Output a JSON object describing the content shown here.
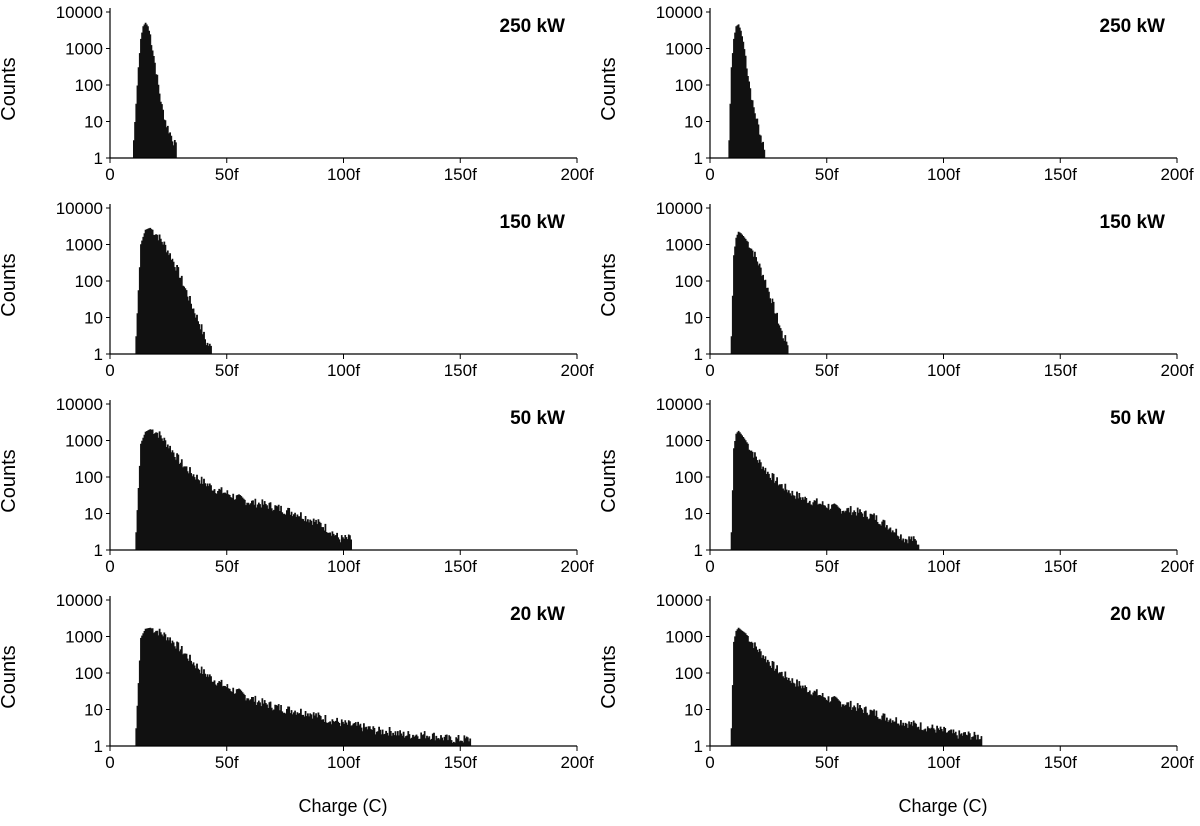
{
  "chart_data": [
    {
      "type": "histogram",
      "column": "left",
      "label": "250 kW",
      "ylabel": "Counts",
      "xlabel": "",
      "yscale": "log",
      "ylim": [
        1,
        10000
      ],
      "xlim": [
        0,
        200
      ],
      "x_unit": "fC",
      "xticks": [
        "0",
        "50f",
        "100f",
        "150f",
        "200f"
      ],
      "yticks": [
        "1",
        "10",
        "100",
        "1000",
        "10000"
      ],
      "x": [
        10,
        12,
        13,
        14,
        15,
        16,
        17,
        18,
        19,
        20,
        21,
        22,
        24,
        26,
        28
      ],
      "counts": [
        3,
        300,
        1800,
        4000,
        5000,
        4000,
        2300,
        1000,
        400,
        150,
        60,
        25,
        8,
        4,
        2
      ]
    },
    {
      "type": "histogram",
      "column": "right",
      "label": "250 kW",
      "ylabel": "Counts",
      "xlabel": "",
      "yscale": "log",
      "ylim": [
        1,
        10000
      ],
      "xlim": [
        0,
        200
      ],
      "x_unit": "fC",
      "xticks": [
        "0",
        "50f",
        "100f",
        "150f",
        "200f"
      ],
      "yticks": [
        "1",
        "10",
        "100",
        "1000",
        "10000"
      ],
      "x": [
        8,
        9,
        10,
        11,
        12,
        13,
        14,
        15,
        16,
        17,
        18,
        20,
        22,
        23
      ],
      "counts": [
        3,
        300,
        1800,
        4000,
        4500,
        3000,
        1500,
        600,
        200,
        80,
        30,
        10,
        3,
        2
      ]
    },
    {
      "type": "histogram",
      "column": "left",
      "label": "150 kW",
      "ylabel": "Counts",
      "xlabel": "",
      "yscale": "log",
      "ylim": [
        1,
        10000
      ],
      "xlim": [
        0,
        200
      ],
      "x_unit": "fC",
      "xticks": [
        "0",
        "50f",
        "100f",
        "150f",
        "200f"
      ],
      "yticks": [
        "1",
        "10",
        "100",
        "1000",
        "10000"
      ],
      "x": [
        11,
        13,
        15,
        17,
        20,
        23,
        26,
        29,
        32,
        35,
        37,
        39,
        41,
        43
      ],
      "counts": [
        3,
        1000,
        2500,
        2800,
        1800,
        1000,
        450,
        180,
        60,
        20,
        10,
        5,
        2,
        1.5
      ]
    },
    {
      "type": "histogram",
      "column": "right",
      "label": "150 kW",
      "ylabel": "Counts",
      "xlabel": "",
      "yscale": "log",
      "ylim": [
        1,
        10000
      ],
      "xlim": [
        0,
        200
      ],
      "x_unit": "fC",
      "xticks": [
        "0",
        "50f",
        "100f",
        "150f",
        "200f"
      ],
      "yticks": [
        "1",
        "10",
        "100",
        "1000",
        "10000"
      ],
      "x": [
        9,
        10,
        11,
        12,
        13,
        15,
        17,
        19,
        21,
        23,
        25,
        27,
        29,
        31,
        33
      ],
      "counts": [
        3,
        500,
        1500,
        2200,
        2000,
        1400,
        900,
        500,
        250,
        120,
        50,
        20,
        8,
        3,
        2
      ]
    },
    {
      "type": "histogram",
      "column": "left",
      "label": "50 kW",
      "ylabel": "Counts",
      "xlabel": "",
      "yscale": "log",
      "ylim": [
        1,
        10000
      ],
      "xlim": [
        0,
        200
      ],
      "x_unit": "fC",
      "xticks": [
        "0",
        "50f",
        "100f",
        "150f",
        "200f"
      ],
      "yticks": [
        "1",
        "10",
        "100",
        "1000",
        "10000"
      ],
      "x": [
        11,
        13,
        15,
        17,
        19,
        21,
        25,
        30,
        35,
        40,
        45,
        50,
        55,
        60,
        65,
        70,
        75,
        80,
        85,
        90,
        95,
        98,
        101,
        103
      ],
      "counts": [
        3,
        800,
        1700,
        2000,
        1800,
        1400,
        700,
        250,
        120,
        70,
        45,
        35,
        25,
        20,
        18,
        15,
        12,
        10,
        7,
        5,
        3,
        2,
        2,
        2
      ]
    },
    {
      "type": "histogram",
      "column": "right",
      "label": "50 kW",
      "ylabel": "Counts",
      "xlabel": "",
      "yscale": "log",
      "ylim": [
        1,
        10000
      ],
      "xlim": [
        0,
        200
      ],
      "x_unit": "fC",
      "xticks": [
        "0",
        "50f",
        "100f",
        "150f",
        "200f"
      ],
      "yticks": [
        "1",
        "10",
        "100",
        "1000",
        "10000"
      ],
      "x": [
        9,
        10,
        11,
        12,
        13,
        15,
        17,
        20,
        25,
        30,
        35,
        40,
        45,
        50,
        55,
        60,
        65,
        70,
        75,
        80,
        83,
        86,
        89
      ],
      "counts": [
        3,
        600,
        1500,
        1800,
        1500,
        1000,
        600,
        300,
        120,
        60,
        35,
        25,
        20,
        16,
        13,
        12,
        10,
        8,
        5,
        3,
        2,
        2,
        1.5
      ]
    },
    {
      "type": "histogram",
      "column": "left",
      "label": "20 kW",
      "ylabel": "Counts",
      "xlabel": "Charge (C)",
      "yscale": "log",
      "ylim": [
        1,
        10000
      ],
      "xlim": [
        0,
        200
      ],
      "x_unit": "fC",
      "xticks": [
        "0",
        "50f",
        "100f",
        "150f",
        "200f"
      ],
      "yticks": [
        "1",
        "10",
        "100",
        "1000",
        "10000"
      ],
      "x": [
        11,
        13,
        15,
        17,
        20,
        25,
        30,
        35,
        40,
        45,
        50,
        55,
        60,
        65,
        70,
        75,
        80,
        85,
        90,
        95,
        100,
        105,
        110,
        115,
        120,
        125,
        130,
        135,
        140,
        145,
        154
      ],
      "counts": [
        3,
        900,
        1600,
        1700,
        1400,
        900,
        450,
        200,
        100,
        60,
        40,
        28,
        20,
        15,
        12,
        10,
        9,
        8,
        6,
        5,
        4,
        3.5,
        3,
        2.5,
        2.5,
        2,
        2,
        2,
        1.8,
        1.5,
        1.5
      ]
    },
    {
      "type": "histogram",
      "column": "right",
      "label": "20 kW",
      "ylabel": "Counts",
      "xlabel": "Charge (C)",
      "yscale": "log",
      "ylim": [
        1,
        10000
      ],
      "xlim": [
        0,
        200
      ],
      "x_unit": "fC",
      "xticks": [
        "0",
        "50f",
        "100f",
        "150f",
        "200f"
      ],
      "yticks": [
        "1",
        "10",
        "100",
        "1000",
        "10000"
      ],
      "x": [
        9,
        10,
        11,
        12,
        13,
        15,
        17,
        20,
        25,
        30,
        35,
        40,
        45,
        50,
        55,
        60,
        65,
        70,
        75,
        80,
        85,
        90,
        95,
        100,
        105,
        110,
        113,
        116
      ],
      "counts": [
        3,
        700,
        1400,
        1700,
        1500,
        1200,
        800,
        450,
        200,
        100,
        60,
        40,
        28,
        20,
        16,
        13,
        10,
        8,
        6,
        5,
        4,
        3.5,
        3,
        2.5,
        2,
        2,
        1.8,
        1.8
      ]
    }
  ]
}
